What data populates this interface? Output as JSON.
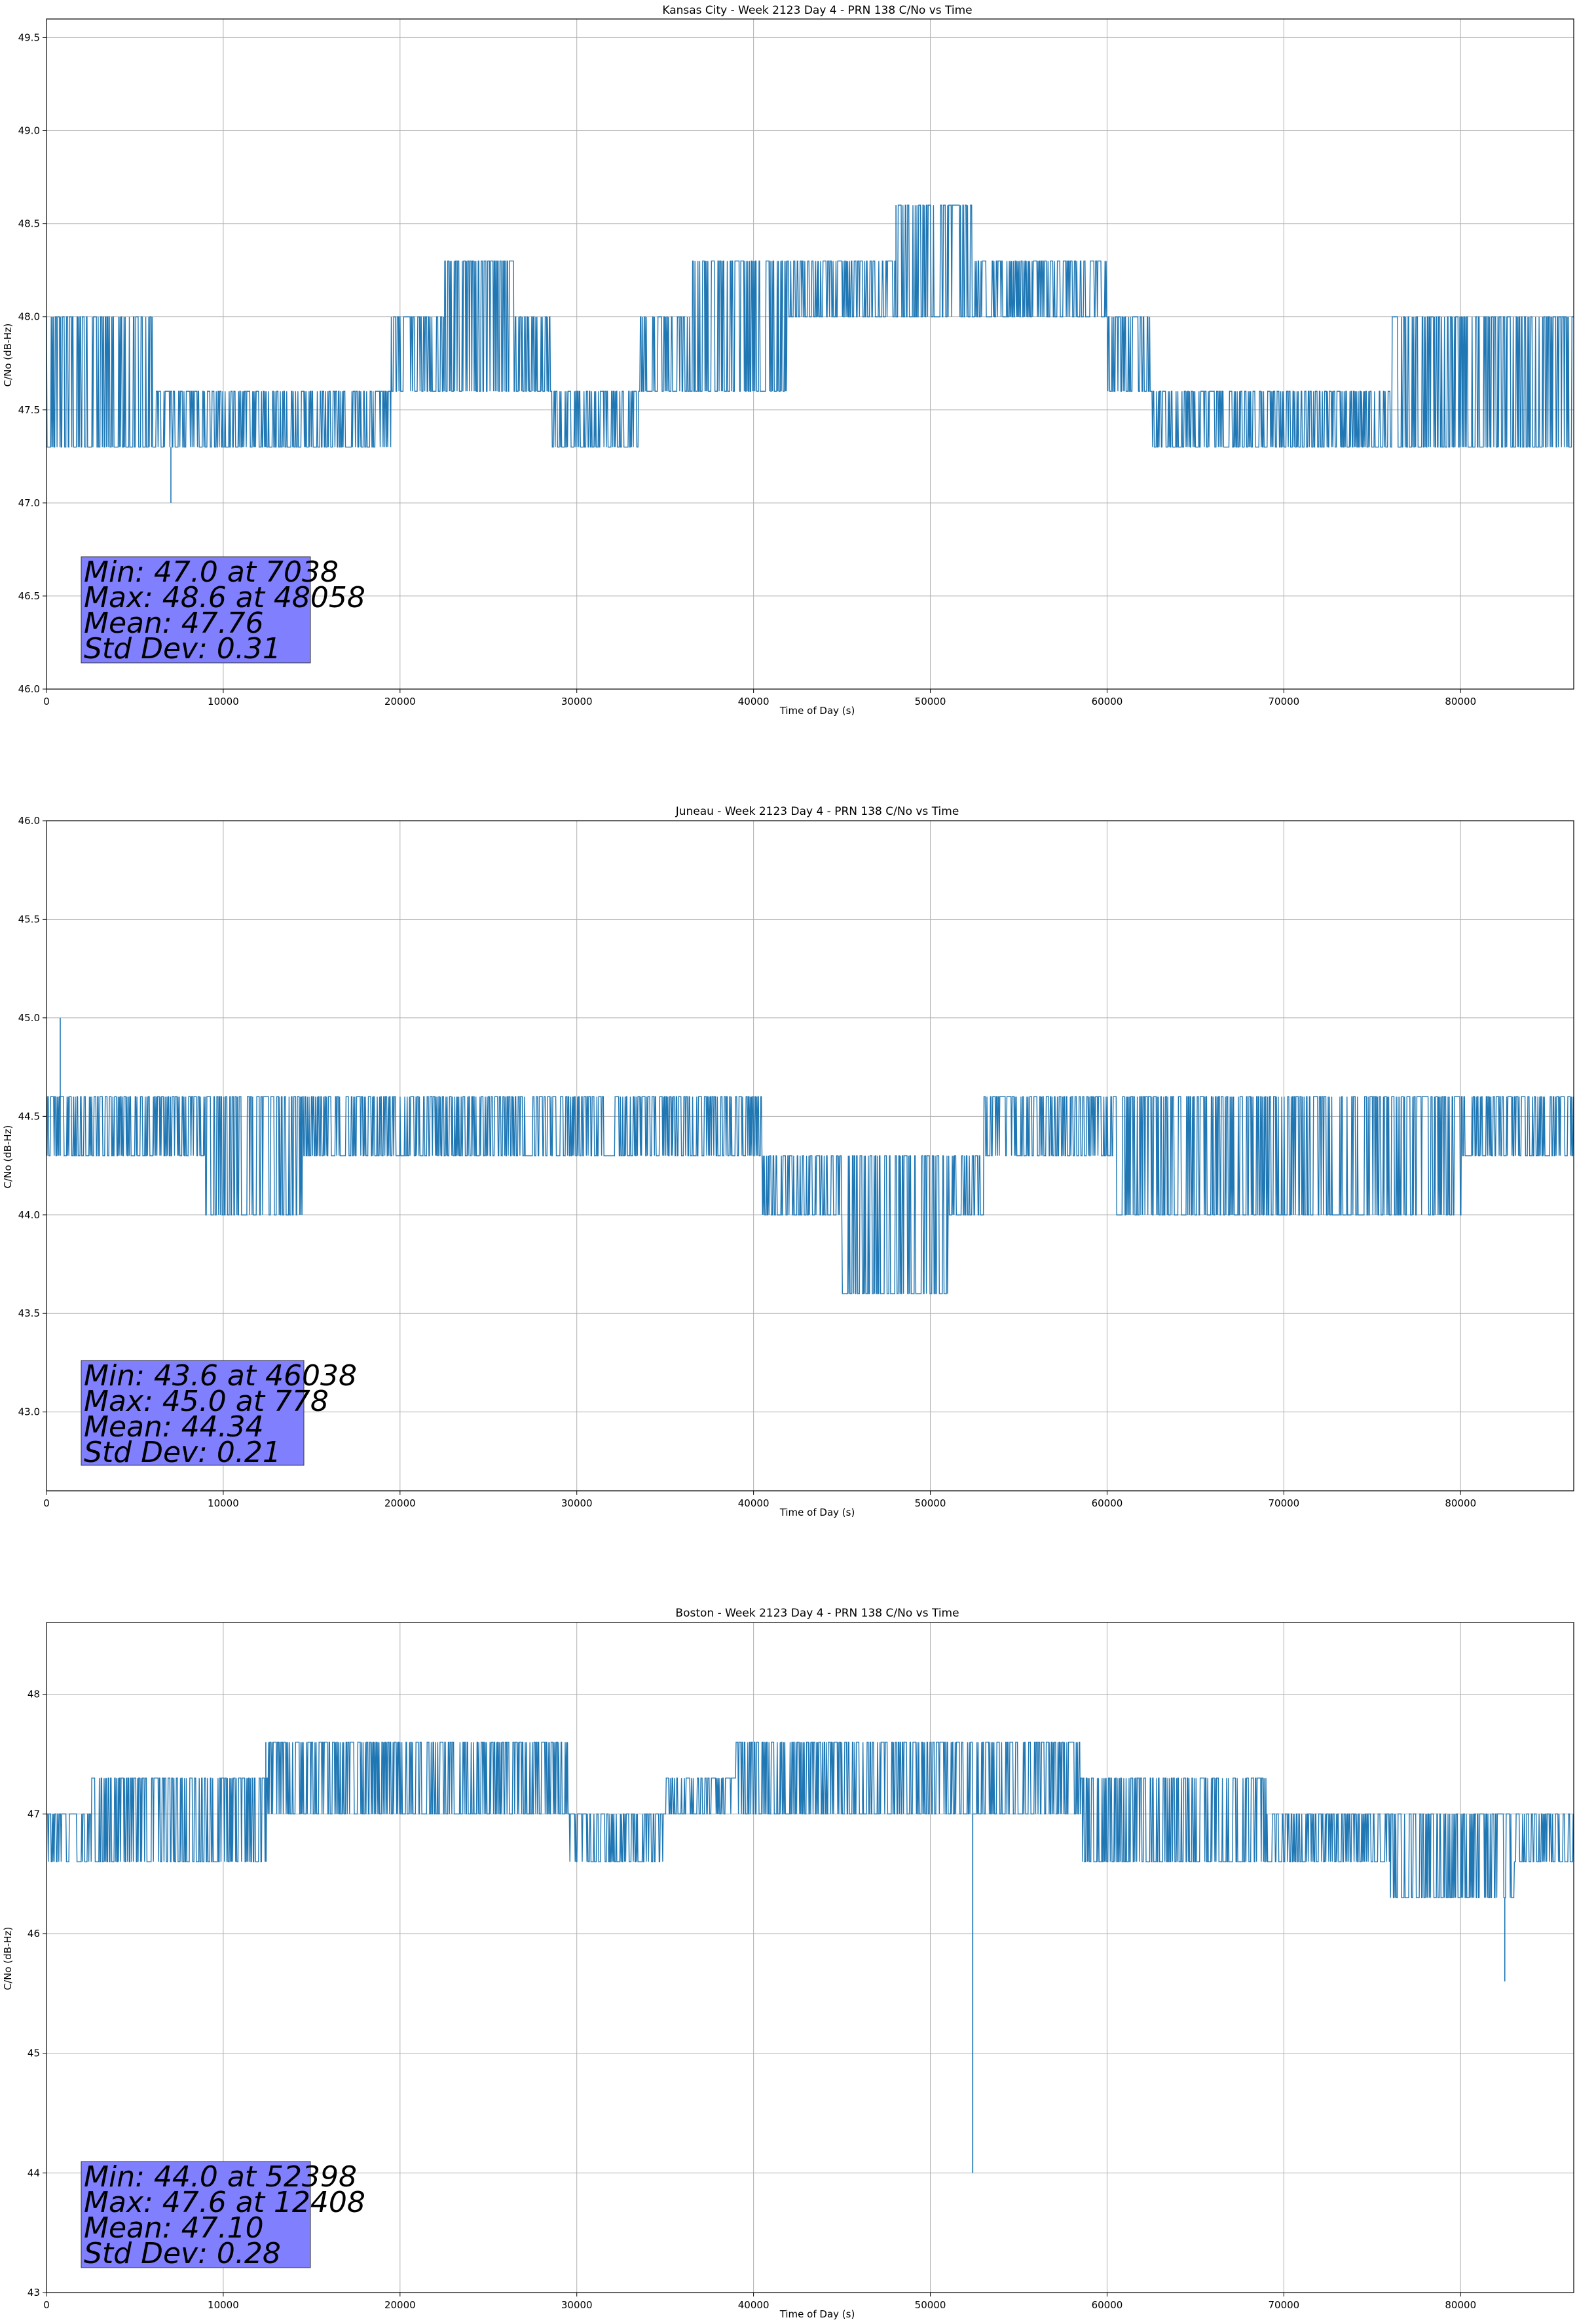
{
  "chart_data": [
    {
      "type": "line",
      "title": "Kansas City - Week 2123 Day 4 - PRN 138 C/No vs Time",
      "xlabel": "Time of Day (s)",
      "ylabel": "C/No (dB-Hz)",
      "xlim": [
        0,
        86400
      ],
      "ylim": [
        46.0,
        49.6
      ],
      "xticks": [
        "0",
        "10000",
        "20000",
        "30000",
        "40000",
        "50000",
        "60000",
        "70000",
        "80000"
      ],
      "yticks": [
        "46.0",
        "46.5",
        "47.0",
        "47.5",
        "48.0",
        "48.5",
        "49.0",
        "49.5"
      ],
      "grid": true,
      "line_color": "#1f77b4",
      "box_color": "#8080ff",
      "stats": [
        "Min: 47.0 at 7038",
        "Max: 48.6 at 48058",
        "Mean: 47.76",
        "Std Dev: 0.31"
      ],
      "min_at": [
        7038,
        47.0
      ],
      "max_at": [
        48058,
        48.6
      ],
      "band_segments": [
        {
          "x": [
            0,
            6000
          ],
          "low": 47.3,
          "high": 48.0
        },
        {
          "x": [
            6000,
            19500
          ],
          "low": 47.3,
          "high": 47.6
        },
        {
          "x": [
            19500,
            22500
          ],
          "low": 47.6,
          "high": 48.0
        },
        {
          "x": [
            22500,
            26500
          ],
          "low": 47.6,
          "high": 48.3
        },
        {
          "x": [
            26500,
            28500
          ],
          "low": 47.6,
          "high": 48.0
        },
        {
          "x": [
            28500,
            33500
          ],
          "low": 47.3,
          "high": 47.6
        },
        {
          "x": [
            33500,
            36500
          ],
          "low": 47.6,
          "high": 48.0
        },
        {
          "x": [
            36500,
            42000
          ],
          "low": 47.6,
          "high": 48.3
        },
        {
          "x": [
            42000,
            48000
          ],
          "low": 48.0,
          "high": 48.3
        },
        {
          "x": [
            48000,
            52500
          ],
          "low": 48.0,
          "high": 48.6
        },
        {
          "x": [
            52500,
            60000
          ],
          "low": 48.0,
          "high": 48.3
        },
        {
          "x": [
            60000,
            62500
          ],
          "low": 47.6,
          "high": 48.0
        },
        {
          "x": [
            62500,
            76000
          ],
          "low": 47.3,
          "high": 47.6
        },
        {
          "x": [
            76000,
            86400
          ],
          "low": 47.3,
          "high": 48.0
        }
      ]
    },
    {
      "type": "line",
      "title": "Juneau - Week 2123 Day 4 - PRN 138 C/No vs Time",
      "xlabel": "Time of Day (s)",
      "ylabel": "C/No (dB-Hz)",
      "xlim": [
        0,
        86400
      ],
      "ylim": [
        42.6,
        46.0
      ],
      "xticks": [
        "0",
        "10000",
        "20000",
        "30000",
        "40000",
        "50000",
        "60000",
        "70000",
        "80000"
      ],
      "yticks": [
        "43.0",
        "43.5",
        "44.0",
        "44.5",
        "45.0",
        "45.5",
        "46.0"
      ],
      "grid": true,
      "line_color": "#1f77b4",
      "box_color": "#8080ff",
      "stats": [
        "Min: 43.6 at 46038",
        "Max: 45.0 at 778",
        "Mean: 44.34",
        "Std Dev: 0.21"
      ],
      "min_at": [
        46038,
        43.6
      ],
      "max_at": [
        778,
        45.0
      ],
      "band_segments": [
        {
          "x": [
            0,
            9000
          ],
          "low": 44.3,
          "high": 44.6
        },
        {
          "x": [
            9000,
            14500
          ],
          "low": 44.0,
          "high": 44.6
        },
        {
          "x": [
            14500,
            40500
          ],
          "low": 44.3,
          "high": 44.6
        },
        {
          "x": [
            40500,
            45000
          ],
          "low": 44.0,
          "high": 44.3
        },
        {
          "x": [
            45000,
            51000
          ],
          "low": 43.6,
          "high": 44.3
        },
        {
          "x": [
            51000,
            53000
          ],
          "low": 44.0,
          "high": 44.3
        },
        {
          "x": [
            53000,
            60500
          ],
          "low": 44.3,
          "high": 44.6
        },
        {
          "x": [
            60500,
            80000
          ],
          "low": 44.0,
          "high": 44.6
        },
        {
          "x": [
            80000,
            86400
          ],
          "low": 44.3,
          "high": 44.6
        }
      ]
    },
    {
      "type": "line",
      "title": "Boston - Week 2123 Day 4 - PRN 138 C/No vs Time",
      "xlabel": "Time of Day (s)",
      "ylabel": "C/No (dB-Hz)",
      "xlim": [
        0,
        86400
      ],
      "ylim": [
        43.0,
        48.6
      ],
      "xticks": [
        "0",
        "10000",
        "20000",
        "30000",
        "40000",
        "50000",
        "60000",
        "70000",
        "80000"
      ],
      "yticks": [
        "43",
        "44",
        "45",
        "46",
        "47",
        "48"
      ],
      "grid": true,
      "line_color": "#1f77b4",
      "box_color": "#8080ff",
      "stats": [
        "Min: 44.0 at 52398",
        "Max: 47.6 at 12408",
        "Mean: 47.10",
        "Std Dev: 0.28"
      ],
      "min_at": [
        52398,
        44.0
      ],
      "max_at": [
        12408,
        47.6
      ],
      "band_segments": [
        {
          "x": [
            0,
            2500
          ],
          "low": 46.6,
          "high": 47.0
        },
        {
          "x": [
            2500,
            12500
          ],
          "low": 46.6,
          "high": 47.3
        },
        {
          "x": [
            12500,
            29500
          ],
          "low": 47.0,
          "high": 47.6
        },
        {
          "x": [
            29500,
            35000
          ],
          "low": 46.6,
          "high": 47.0
        },
        {
          "x": [
            35000,
            39000
          ],
          "low": 47.0,
          "high": 47.3
        },
        {
          "x": [
            39000,
            58500
          ],
          "low": 47.0,
          "high": 47.6
        },
        {
          "x": [
            58500,
            69000
          ],
          "low": 46.6,
          "high": 47.3
        },
        {
          "x": [
            69000,
            76000
          ],
          "low": 46.6,
          "high": 47.0
        },
        {
          "x": [
            76000,
            83000
          ],
          "low": 46.3,
          "high": 47.0
        },
        {
          "x": [
            83000,
            86400
          ],
          "low": 46.6,
          "high": 47.0
        }
      ],
      "spikes": [
        {
          "x": 52398,
          "y": 44.0
        },
        {
          "x": 82500,
          "y": 45.6
        }
      ]
    }
  ]
}
